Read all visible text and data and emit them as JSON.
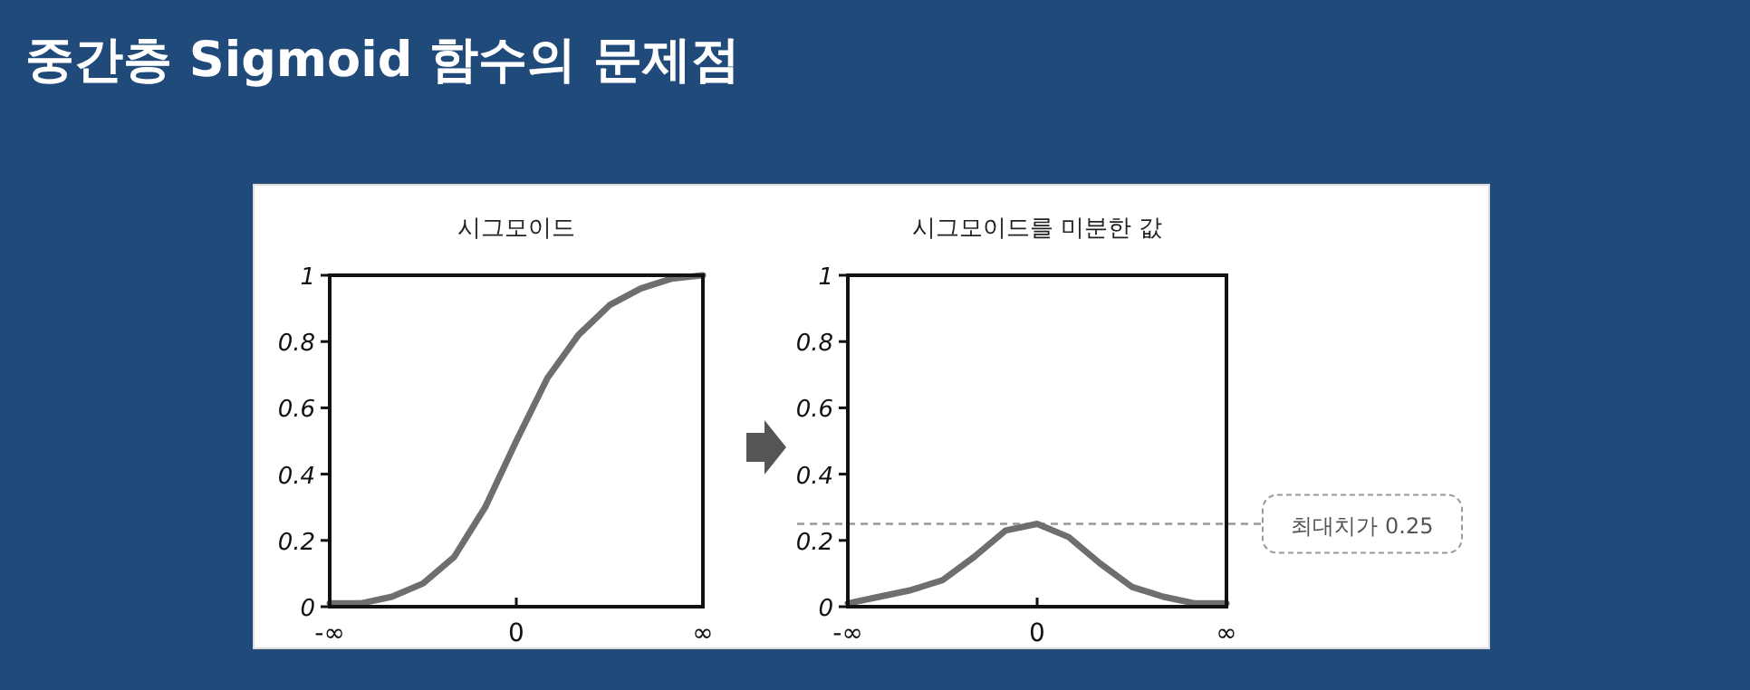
{
  "chart_data": [
    {
      "type": "line",
      "title": "시그모이드",
      "annotations": [
        "중간층 Sigmoid 함수의 문제점"
      ],
      "categories": [
        "-∞",
        null,
        null,
        null,
        null,
        null,
        "0",
        null,
        null,
        null,
        null,
        null,
        "∞"
      ],
      "ylim": [
        0,
        1
      ],
      "yticks": [
        0,
        0.2,
        0.4,
        0.6,
        0.8,
        1
      ],
      "line_style": "solid",
      "series": [
        {
          "color": "#6e6e6e",
          "values": [
            0.01,
            0.01,
            0.03,
            0.07,
            0.15,
            0.3,
            0.5,
            0.69,
            0.82,
            0.91,
            0.96,
            0.99,
            1
          ]
        }
      ]
    },
    {
      "type": "line",
      "title": "시그모이드를 미분한 값",
      "categories": [
        "-∞",
        null,
        null,
        null,
        null,
        null,
        "0",
        null,
        null,
        null,
        null,
        null,
        "∞"
      ],
      "ylim": [
        0,
        1
      ],
      "yticks": [
        0,
        0.2,
        0.4,
        0.6,
        0.8,
        1
      ],
      "line_style": "solid",
      "series": [
        {
          "color": "#6e6e6e",
          "values": [
            0.01,
            0.03,
            0.05,
            0.08,
            0.15,
            0.23,
            0.25,
            0.21,
            0.13,
            0.06,
            0.03,
            0.01,
            0.01
          ]
        }
      ],
      "ref_lines": [
        {
          "axis": "y",
          "value": 0.25,
          "label": "최대치가 0.25",
          "color": "#999999",
          "line_style": "dashed"
        }
      ]
    }
  ]
}
